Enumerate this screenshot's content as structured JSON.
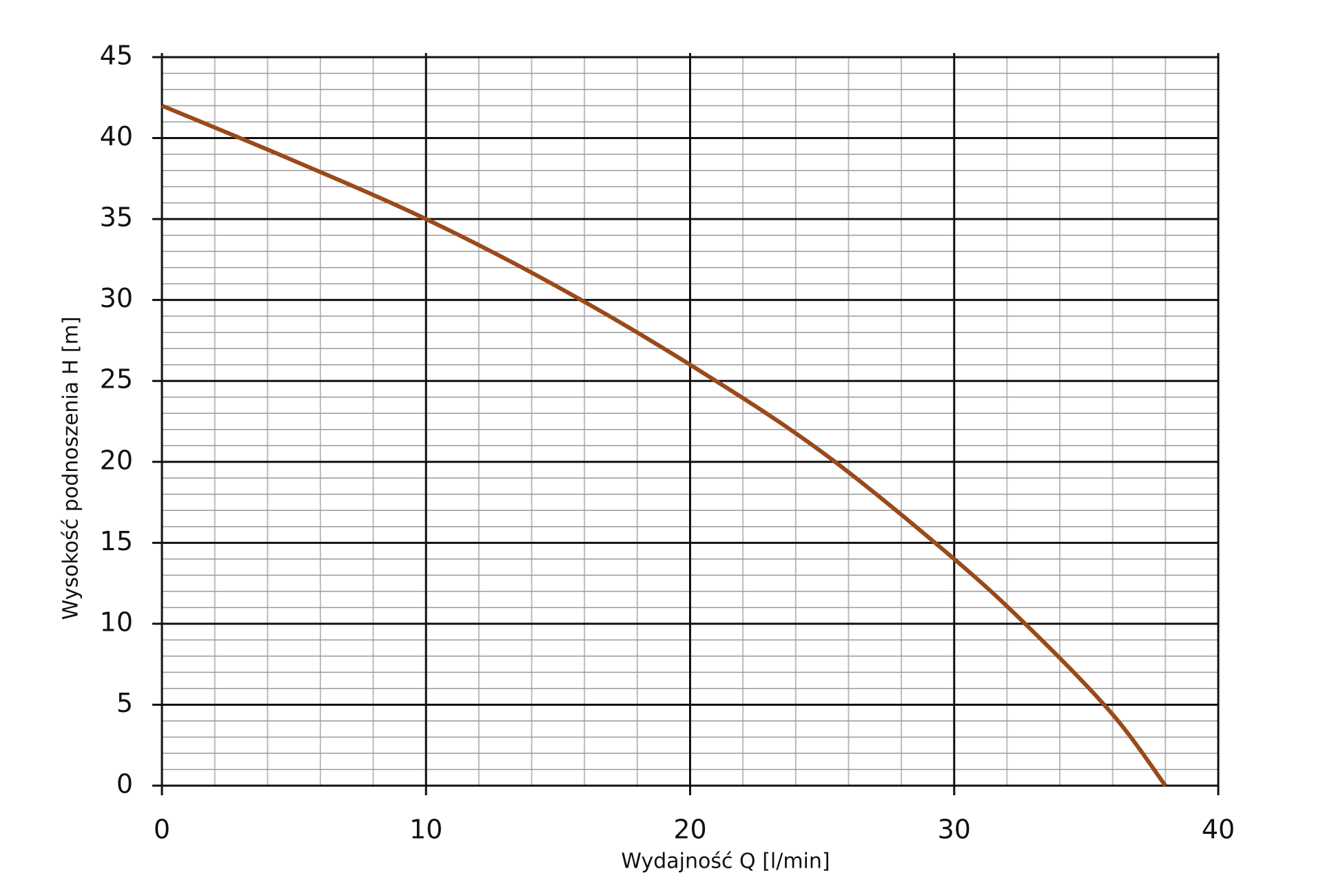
{
  "chart_data": {
    "type": "line",
    "x_label": "Wydajność Q [l/min]",
    "y_label": "Wysokość podnoszenia H [m]",
    "x": [
      0,
      5,
      10,
      15,
      20,
      25,
      30,
      33,
      36,
      38
    ],
    "values": [
      42,
      38.6,
      35,
      30.8,
      26,
      20.6,
      14,
      9.5,
      4.4,
      0
    ],
    "color": "#9a4a1a",
    "xlim": [
      0,
      40
    ],
    "xticks": [
      0,
      10,
      20,
      30,
      40
    ],
    "ylim": [
      0,
      45
    ],
    "yticks": [
      0,
      5,
      10,
      15,
      20,
      25,
      30,
      35,
      40,
      45
    ],
    "grid": true,
    "minor_grid_step": [
      2,
      1
    ]
  }
}
